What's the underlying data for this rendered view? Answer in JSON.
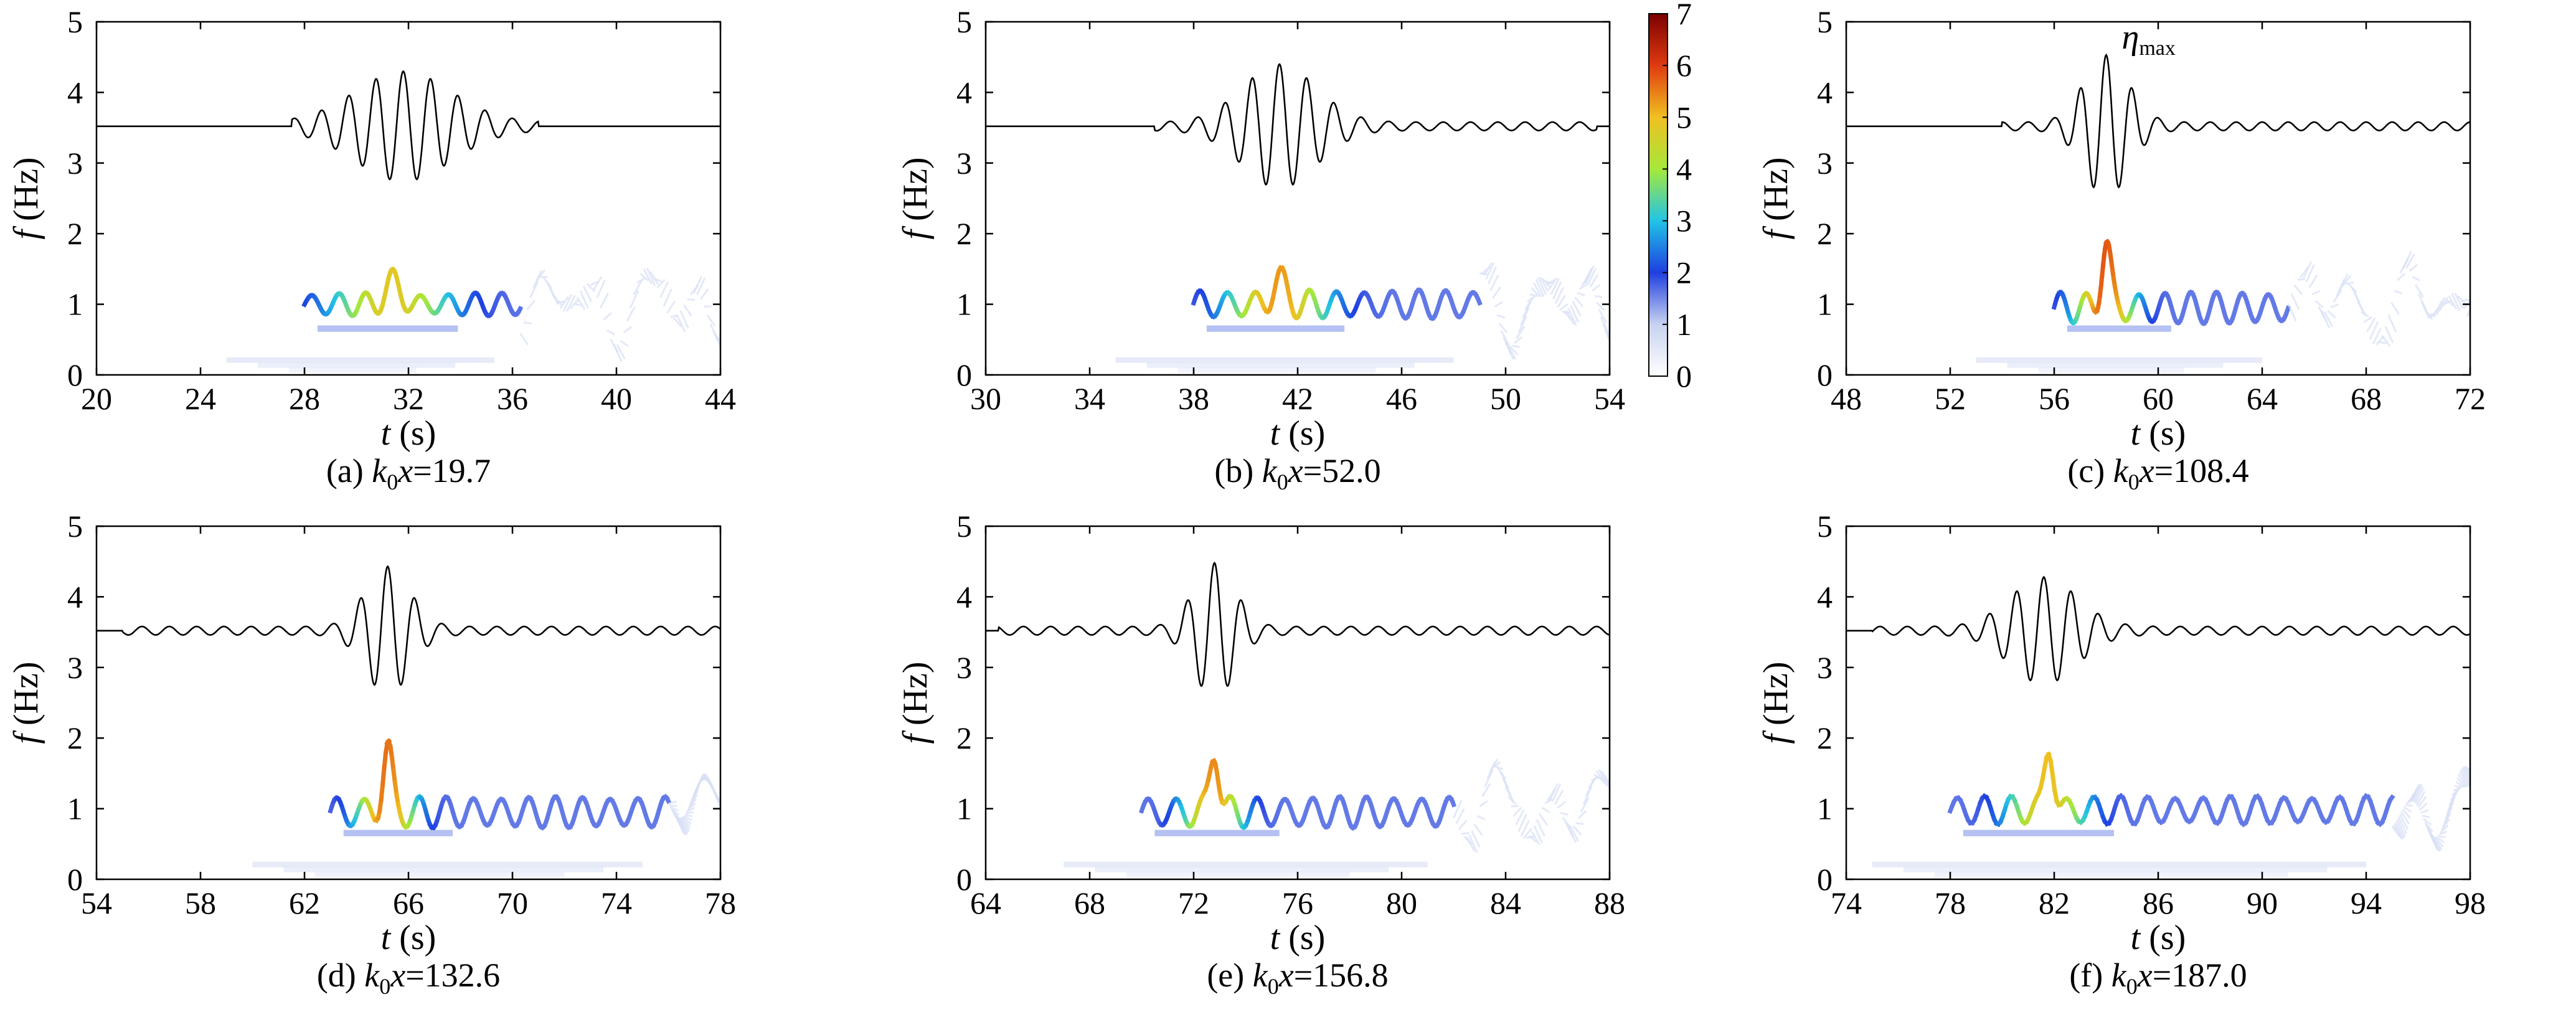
{
  "colorbar": {
    "min": 0,
    "max": 7,
    "ticks": [
      "0",
      "1",
      "2",
      "3",
      "4",
      "5",
      "6",
      "7"
    ],
    "colormap": [
      "#ffffff",
      "#c8d2f0",
      "#1f3fe0",
      "#21c4e6",
      "#a6e83a",
      "#f0c020",
      "#e03a10",
      "#7a0000"
    ]
  },
  "chart_data": [
    {
      "type": "heatmap",
      "caption": {
        "prefix": "(a) ",
        "var": "k",
        "sub": "0",
        "var2": "x",
        "value": "=19.7"
      },
      "xlabel": "t (s)",
      "ylabel": "f (Hz)",
      "xlim": [
        20,
        44
      ],
      "ylim": [
        0,
        5
      ],
      "xticks": [
        20,
        24,
        28,
        32,
        36,
        40,
        44
      ],
      "yticks": [
        0,
        1,
        2,
        3,
        4,
        5
      ],
      "wave": {
        "t_start": 27.5,
        "t_end": 37.0,
        "t_peak": 31.8,
        "period": 1.05,
        "amp": 0.72,
        "spread": 2.6
      },
      "ridge": {
        "t_start": 28.0,
        "t_end": 36.3,
        "f_mean": 1.0,
        "f_amp": 0.14,
        "period": 1.05,
        "energy_peak": 4.8,
        "t_peak": 31.4,
        "spread": 2.4
      },
      "annotation": ""
    },
    {
      "type": "heatmap",
      "caption": {
        "prefix": "(b) ",
        "var": "k",
        "sub": "0",
        "var2": "x",
        "value": "=52.0"
      },
      "xlabel": "t (s)",
      "ylabel": "f (Hz)",
      "xlim": [
        30,
        54
      ],
      "ylim": [
        0,
        5
      ],
      "xticks": [
        30,
        34,
        38,
        42,
        46,
        50,
        54
      ],
      "yticks": [
        0,
        1,
        2,
        3,
        4,
        5
      ],
      "wave": {
        "t_start": 36.5,
        "t_end": 53.5,
        "t_peak": 41.3,
        "period": 1.05,
        "amp": 0.82,
        "spread": 2.0
      },
      "ridge": {
        "t_start": 38.0,
        "t_end": 49.0,
        "f_mean": 1.0,
        "f_amp": 0.18,
        "period": 1.05,
        "energy_peak": 5.3,
        "t_peak": 41.3,
        "spread": 2.0
      },
      "annotation": ""
    },
    {
      "type": "heatmap",
      "caption": {
        "prefix": "(c) ",
        "var": "k",
        "sub": "0",
        "var2": "x",
        "value": "=108.4"
      },
      "xlabel": "t (s)",
      "ylabel": "f (Hz)",
      "xlim": [
        48,
        72
      ],
      "ylim": [
        0,
        5
      ],
      "xticks": [
        48,
        52,
        56,
        60,
        64,
        68,
        72
      ],
      "yticks": [
        0,
        1,
        2,
        3,
        4,
        5
      ],
      "wave": {
        "t_start": 54.0,
        "t_end": 72.0,
        "t_peak": 58.0,
        "period": 1.0,
        "amp": 0.95,
        "spread": 1.2
      },
      "ridge": {
        "t_start": 56.0,
        "t_end": 65.0,
        "f_mean": 0.95,
        "f_amp": 0.2,
        "period": 1.0,
        "energy_peak": 5.8,
        "t_peak": 58.0,
        "spread": 1.2
      },
      "annotation": "η"
    },
    {
      "type": "heatmap",
      "caption": {
        "prefix": "(d) ",
        "var": "k",
        "sub": "0",
        "var2": "x",
        "value": "=132.6"
      },
      "xlabel": "t (s)",
      "ylabel": "f (Hz)",
      "xlim": [
        54,
        78
      ],
      "ylim": [
        0,
        5
      ],
      "xticks": [
        54,
        58,
        62,
        66,
        70,
        74,
        78
      ],
      "yticks": [
        0,
        1,
        2,
        3,
        4,
        5
      ],
      "wave": {
        "t_start": 55.0,
        "t_end": 78.0,
        "t_peak": 65.2,
        "period": 1.05,
        "amp": 0.85,
        "spread": 1.2
      },
      "ridge": {
        "t_start": 63.0,
        "t_end": 76.0,
        "f_mean": 0.95,
        "f_amp": 0.2,
        "period": 1.05,
        "energy_peak": 5.6,
        "t_peak": 65.2,
        "spread": 1.2
      },
      "annotation": ""
    },
    {
      "type": "heatmap",
      "caption": {
        "prefix": "(e) ",
        "var": "k",
        "sub": "0",
        "var2": "x",
        "value": "=156.8"
      },
      "xlabel": "t (s)",
      "ylabel": "f (Hz)",
      "xlim": [
        64,
        88
      ],
      "ylim": [
        0,
        5
      ],
      "xticks": [
        64,
        68,
        72,
        76,
        80,
        84,
        88
      ],
      "yticks": [
        0,
        1,
        2,
        3,
        4,
        5
      ],
      "wave": {
        "t_start": 64.5,
        "t_end": 88.0,
        "t_peak": 72.8,
        "period": 1.05,
        "amp": 0.9,
        "spread": 1.1
      },
      "ridge": {
        "t_start": 70.0,
        "t_end": 82.0,
        "f_mean": 0.95,
        "f_amp": 0.2,
        "period": 1.05,
        "energy_peak": 5.4,
        "t_peak": 72.8,
        "spread": 1.2
      },
      "annotation": ""
    },
    {
      "type": "heatmap",
      "caption": {
        "prefix": "(f) ",
        "var": "k",
        "sub": "0",
        "var2": "x",
        "value": "=187.0"
      },
      "xlabel": "t (s)",
      "ylabel": "f (Hz)",
      "xlim": [
        74,
        98
      ],
      "ylim": [
        0,
        5
      ],
      "xticks": [
        74,
        78,
        82,
        86,
        90,
        94,
        98
      ],
      "yticks": [
        0,
        1,
        2,
        3,
        4,
        5
      ],
      "wave": {
        "t_start": 75.0,
        "t_end": 98.0,
        "t_peak": 81.6,
        "period": 1.05,
        "amp": 0.7,
        "spread": 1.8
      },
      "ridge": {
        "t_start": 78.0,
        "t_end": 95.0,
        "f_mean": 0.98,
        "f_amp": 0.18,
        "period": 1.05,
        "energy_peak": 5.0,
        "t_peak": 81.8,
        "spread": 1.6
      },
      "annotation": ""
    }
  ]
}
